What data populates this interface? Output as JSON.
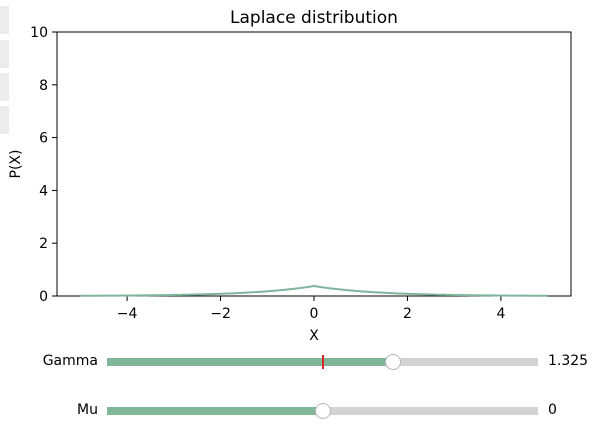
{
  "chart_data": {
    "type": "line",
    "title": "Laplace distribution",
    "xlabel": "X",
    "ylabel": "P(X)",
    "xlim": [
      -5.5,
      5.5
    ],
    "ylim": [
      0,
      10
    ],
    "xticks": [
      -4,
      -2,
      0,
      2,
      4
    ],
    "xtick_labels": [
      "−4",
      "−2",
      "0",
      "2",
      "4"
    ],
    "yticks": [
      0,
      2,
      4,
      6,
      8,
      10
    ],
    "ytick_labels": [
      "0",
      "2",
      "4",
      "6",
      "8",
      "10"
    ],
    "grid": false,
    "series": [
      {
        "color": "#7fb59a",
        "function": "laplace_pdf",
        "mu": 0,
        "gamma": 1.325,
        "x_range": [
          -5,
          5
        ]
      }
    ]
  },
  "sliders": {
    "gamma": {
      "label": "Gamma",
      "value": 1.325,
      "value_text": "1.325",
      "min": 0,
      "max": 2,
      "initial": 1.0
    },
    "mu": {
      "label": "Mu",
      "value": 0,
      "value_text": "0",
      "min": -3,
      "max": 3
    }
  },
  "colors": {
    "fill": "#80b799",
    "track": "#d3d3d3",
    "initial_marker": "#d62728",
    "curve": "#7fb59a"
  }
}
